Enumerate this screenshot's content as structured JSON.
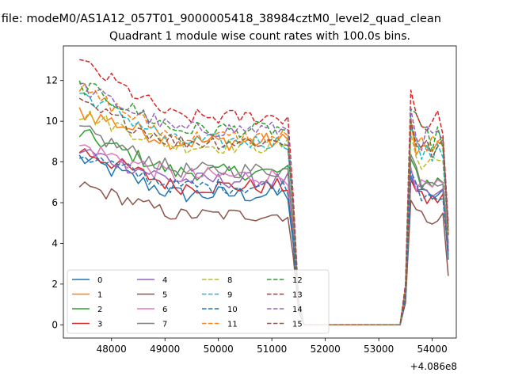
{
  "suptitle": "n file: modeM0/AS1A12_057T01_9000005418_38984cztM0_level2_quad_clean",
  "chart_data": {
    "type": "line",
    "title": "Quadrant 1 module wise count rates with 100.0s bins.",
    "xlabel": "",
    "ylabel": "",
    "x_offset_label": "+4.086e8",
    "x_offset": 408600000,
    "xlim": [
      408647100,
      408654450
    ],
    "ylim": [
      -0.65,
      13.7
    ],
    "x_ticks": [
      48000,
      49000,
      50000,
      51000,
      52000,
      53000,
      54000
    ],
    "y_ticks": [
      0,
      2,
      4,
      6,
      8,
      10,
      12
    ],
    "grid": false,
    "legend": {
      "position": "lower-left",
      "columns": 4
    },
    "series": [
      {
        "name": "0",
        "color": "#1f77b4",
        "dash": "solid",
        "base": 6.4,
        "start": 8.2,
        "amp": 0.45,
        "flare": 7.2,
        "end": 3.2
      },
      {
        "name": "1",
        "color": "#ff7f0e",
        "dash": "solid",
        "base": 9.0,
        "start": 10.5,
        "amp": 0.45,
        "flare": 9.8,
        "end": 4.5
      },
      {
        "name": "2",
        "color": "#2ca02c",
        "dash": "solid",
        "base": 7.5,
        "start": 9.4,
        "amp": 0.4,
        "flare": 8.0,
        "end": 4.0
      },
      {
        "name": "3",
        "color": "#d62728",
        "dash": "solid",
        "base": 6.8,
        "start": 8.6,
        "amp": 0.4,
        "flare": 7.0,
        "end": 3.6
      },
      {
        "name": "4",
        "color": "#9467bd",
        "dash": "solid",
        "base": 7.1,
        "start": 8.6,
        "amp": 0.4,
        "flare": 7.2,
        "end": 3.8
      },
      {
        "name": "5",
        "color": "#8c564b",
        "dash": "solid",
        "base": 5.4,
        "start": 6.9,
        "amp": 0.35,
        "flare": 6.0,
        "end": 2.4
      },
      {
        "name": "6",
        "color": "#e377c2",
        "dash": "solid",
        "base": 7.3,
        "start": 8.8,
        "amp": 0.45,
        "flare": 7.6,
        "end": 4.0
      },
      {
        "name": "7",
        "color": "#7f7f7f",
        "dash": "solid",
        "base": 7.6,
        "start": 9.6,
        "amp": 0.4,
        "flare": 8.2,
        "end": 4.0
      },
      {
        "name": "8",
        "color": "#bcbd22",
        "dash": "dashed",
        "base": 8.8,
        "start": 10.4,
        "amp": 0.4,
        "flare": 9.2,
        "end": 4.4
      },
      {
        "name": "9",
        "color": "#17becf",
        "dash": "dashed",
        "base": 9.0,
        "start": 11.4,
        "amp": 0.4,
        "flare": 9.5,
        "end": 4.6
      },
      {
        "name": "10",
        "color": "#1f77b4",
        "dash": "dashed",
        "base": 6.8,
        "start": 8.4,
        "amp": 0.4,
        "flare": 7.4,
        "end": 3.4
      },
      {
        "name": "11",
        "color": "#ff7f0e",
        "dash": "dashed",
        "base": 9.2,
        "start": 11.6,
        "amp": 0.4,
        "flare": 10.0,
        "end": 4.6
      },
      {
        "name": "12",
        "color": "#2ca02c",
        "dash": "dashed",
        "base": 9.6,
        "start": 11.8,
        "amp": 0.4,
        "flare": 10.4,
        "end": 4.8
      },
      {
        "name": "13",
        "color": "#d62728",
        "dash": "dashed",
        "base": 10.2,
        "start": 12.9,
        "amp": 0.4,
        "flare": 11.3,
        "end": 5.0
      },
      {
        "name": "14",
        "color": "#9467bd",
        "dash": "dashed",
        "base": 9.6,
        "start": 11.7,
        "amp": 0.4,
        "flare": 10.4,
        "end": 4.8
      },
      {
        "name": "15",
        "color": "#8c564b",
        "dash": "dashed",
        "base": 9.0,
        "start": 10.8,
        "amp": 0.4,
        "flare": 9.8,
        "end": 4.4
      }
    ]
  }
}
